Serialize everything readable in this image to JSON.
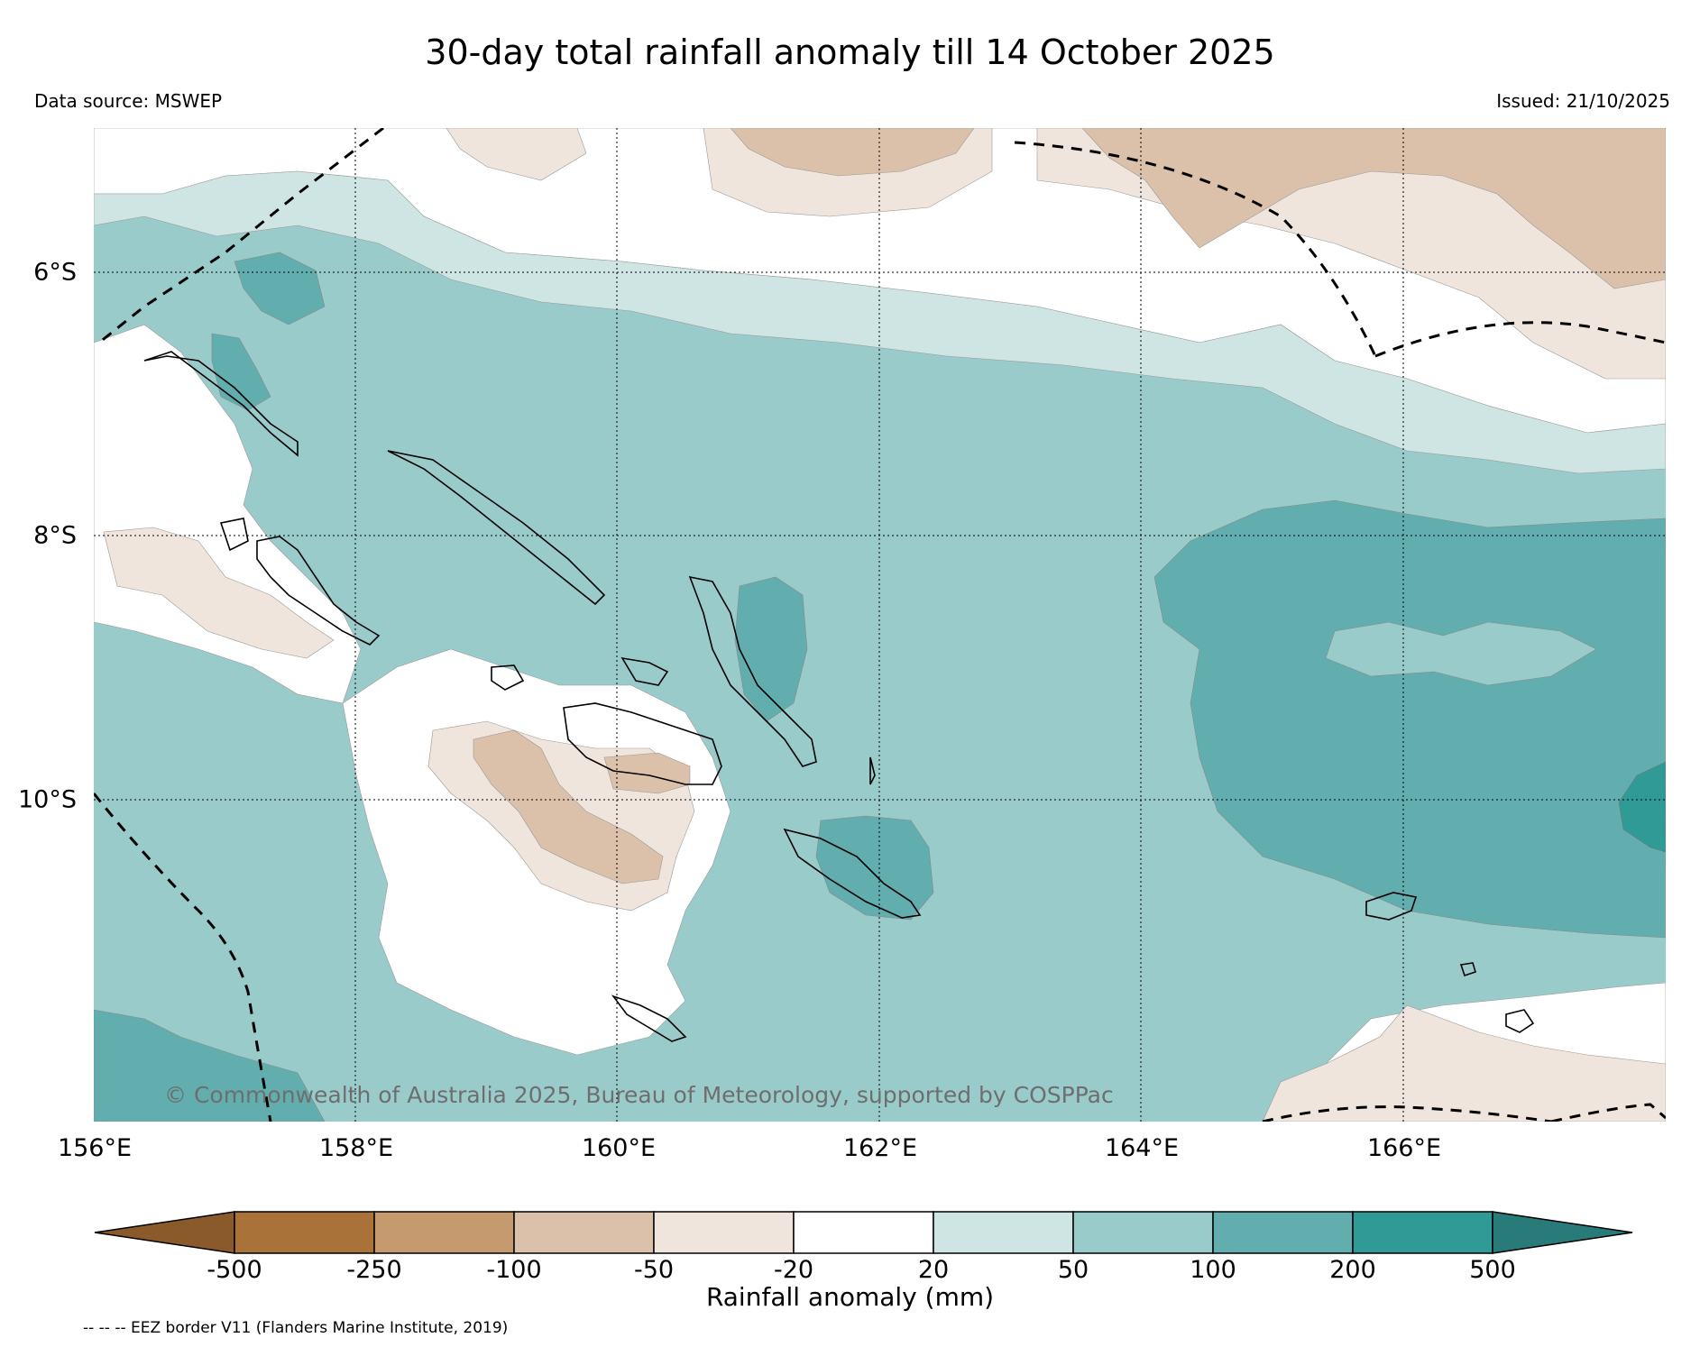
{
  "title": "30-day total rainfall anomaly till 14 October 2025",
  "data_source": "Data source: MSWEP",
  "issued": "Issued: 21/10/2025",
  "copyright": "© Commonwealth of Australia 2025, Bureau of Meteorology, supported by COSPPac",
  "longitude_labels": [
    "156°E",
    "158°E",
    "160°E",
    "162°E",
    "164°E",
    "166°E"
  ],
  "latitude_labels": [
    "6°S",
    "8°S",
    "10°S"
  ],
  "colorbar": {
    "title": "Rainfall anomaly (mm)",
    "tick_labels": [
      "-500",
      "-250",
      "-100",
      "-50",
      "-20",
      "20",
      "50",
      "100",
      "200",
      "500"
    ],
    "colors": [
      "#8b5a2b",
      "#a97238",
      "#c49a6e",
      "#dbc1a9",
      "#f0e5dc",
      "#ffffff",
      "#cfe5e4",
      "#9acbcb",
      "#62aeae",
      "#2f9a96",
      "#287b78"
    ]
  },
  "legend_note": "-- -- -- EEZ border V11 (Flanders Marine Institute, 2019)",
  "colors": {
    "very_wet": "#2f9a96",
    "wet": "#62aeae",
    "moderate_wet": "#9acbcb",
    "slight_wet": "#cfe5e4",
    "slight_dry": "#f0e5dc",
    "dry": "#dbc1a9"
  }
}
